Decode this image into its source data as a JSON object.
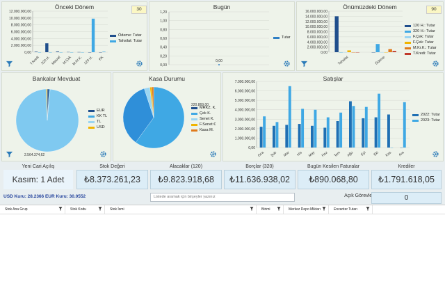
{
  "panels": {
    "onceki": {
      "title": "Önceki Dönem",
      "badge": "30",
      "y_ticks": [
        "12.000.000,00",
        "10.000.000,00",
        "8.000.000,00",
        "6.000.000,00",
        "4.000.000,00",
        "2.000.000,00",
        "0,00"
      ],
      "categories": [
        "T.Kredi",
        "320 H.",
        "Masraf",
        "M.Çek",
        "M.Kr.K.",
        "120 H.",
        "KK"
      ],
      "legend": [
        "Ödeme: Tutar",
        "Tahsilat: Tutar"
      ]
    },
    "bugun": {
      "title": "Bugün",
      "y_ticks": [
        "1,20",
        "1,00",
        "0,80",
        "0,60",
        "0,40",
        "0,20",
        "0,00"
      ],
      "point_label": "0,00",
      "legend": [
        "Tutar"
      ]
    },
    "onumuzdeki": {
      "title": "Önümüzdeki Dönem",
      "badge": "90",
      "y_ticks": [
        "16.000.000,00",
        "14.000.000,00",
        "12.000.000,00",
        "10.000.000,00",
        "8.000.000,00",
        "6.000.000,00",
        "4.000.000,00",
        "2.000.000,00",
        "0,00"
      ],
      "categories": [
        "Tahsilat",
        "Ödeme"
      ],
      "legend": [
        "120 H.: Tutar",
        "320 H.: Tutar",
        "F.Çek: Tutar",
        "F.Çek: Tutar",
        "M.Kr.K.: Tutar",
        "T.Kredi: Tutar"
      ]
    },
    "banka": {
      "title": "Bankalar Mevduat",
      "total": "2.564.374,62",
      "legend": [
        "EUR",
        "KK TL",
        "TL",
        "USD"
      ]
    },
    "kasa": {
      "title": "Kasa Durumu",
      "total": "220.869,00",
      "legend": [
        "MRKZ. K.",
        "Çek K.",
        "Senet K.",
        "F.Senet €",
        "Kasa M."
      ]
    },
    "satislar": {
      "title": "Satışlar",
      "y_ticks": [
        "7.000.000,00",
        "6.000.000,00",
        "5.000.000,00",
        "4.000.000,00",
        "3.000.000,00",
        "2.000.000,00",
        "1.000.000,00",
        "0,00"
      ],
      "legend": [
        "2022: Tutar",
        "2023: Tutar"
      ]
    }
  },
  "chart_data": [
    {
      "type": "bar",
      "title": "Önceki Dönem",
      "categories": [
        "T.Kredi",
        "320 H.",
        "Masraf",
        "M.Çek",
        "M.Kr.K.",
        "120 H.",
        "KK"
      ],
      "series": [
        {
          "name": "Ödeme: Tutar",
          "values": [
            150000,
            2600000,
            200000,
            60000,
            40000,
            0,
            0
          ]
        },
        {
          "name": "Tahsilat: Tutar",
          "values": [
            0,
            0,
            0,
            0,
            0,
            9800000,
            150000
          ]
        }
      ],
      "ylim": [
        0,
        12000000
      ]
    },
    {
      "type": "line",
      "title": "Bugün",
      "categories": [
        ""
      ],
      "series": [
        {
          "name": "Tutar",
          "values": [
            0
          ]
        }
      ],
      "ylim": [
        0,
        1.2
      ]
    },
    {
      "type": "bar",
      "title": "Önümüzdeki Dönem",
      "categories": [
        "Tahsilat",
        "Ödeme"
      ],
      "series": [
        {
          "name": "120 H.: Tutar",
          "values": [
            14000000,
            0
          ]
        },
        {
          "name": "320 H.: Tutar",
          "values": [
            0,
            3200000
          ]
        },
        {
          "name": "F.Çek: Tutar",
          "values": [
            0,
            0
          ]
        },
        {
          "name": "F.Çek: Tutar",
          "values": [
            700000,
            0
          ]
        },
        {
          "name": "M.Kr.K.: Tutar",
          "values": [
            0,
            1200000
          ]
        },
        {
          "name": "T.Kredi: Tutar",
          "values": [
            0,
            500000
          ]
        }
      ],
      "ylim": [
        0,
        16000000
      ]
    },
    {
      "type": "pie",
      "title": "Bankalar Mevduat",
      "labels": [
        "EUR",
        "KK TL",
        "TL",
        "USD"
      ],
      "values": [
        0.01,
        0.005,
        0.98,
        0.005
      ],
      "total_label": "2.564.374,62"
    },
    {
      "type": "pie",
      "title": "Kasa Durumu",
      "labels": [
        "MRKZ. K.",
        "Çek K.",
        "Senet K.",
        "F.Senet €",
        "Kasa M."
      ],
      "values": [
        0.6,
        0.35,
        0.03,
        0.01,
        0.01
      ],
      "total_label": "220.869,00"
    },
    {
      "type": "bar",
      "title": "Satışlar",
      "categories": [
        "Oca",
        "Şub",
        "Mar",
        "Nis",
        "May",
        "Haz",
        "Tem",
        "Ağu",
        "Eyl",
        "Eki",
        "Kas",
        "Ara"
      ],
      "series": [
        {
          "name": "2022: Tutar",
          "values": [
            2200000,
            2300000,
            2400000,
            2500000,
            2300000,
            2100000,
            2800000,
            4900000,
            3100000,
            3200000,
            3500000,
            0
          ]
        },
        {
          "name": "2023: Tutar",
          "values": [
            3300000,
            2700000,
            6500000,
            4100000,
            4000000,
            3200000,
            3700000,
            4400000,
            4300000,
            5700000,
            0,
            4800000
          ]
        }
      ],
      "ylim": [
        0,
        7000000
      ]
    }
  ],
  "kpis": [
    {
      "label": "Yeni Cari Açılış",
      "value": "Kasım: 1 Adet"
    },
    {
      "label": "Stok Değeri",
      "value": "₺8.373.261,23"
    },
    {
      "label": "Alacaklar (120)",
      "value": "₺9.823.918,68"
    },
    {
      "label": "Borçlar (320)",
      "value": "₺11.636.938,02"
    },
    {
      "label": "Bugün Kesilen Faturalar",
      "value": "₺890.068,80"
    },
    {
      "label": "Krediler",
      "value": "₺1.791.618,05"
    }
  ],
  "currency": "USD Kuru: 28.2366 EUR Kuru: 30.0552",
  "search": {
    "placeholder": "Listede aramak için birşeyler yazınız"
  },
  "gorevler": {
    "label": "Açık Görevlerim",
    "value": "0"
  },
  "grid": {
    "columns": [
      "Stok Ana Grup",
      "Stok Kodu",
      "Stok İsmi",
      "Birimi",
      "Merkez Depo Miktarı",
      "Envanter Tutarı"
    ]
  },
  "colors": {
    "series_a": "#2f7fc4",
    "series_b": "#3fa8e4",
    "pie_main": "#7fc9f0",
    "accent_yellow": "#f0b400",
    "accent_orange": "#e07a1c"
  }
}
